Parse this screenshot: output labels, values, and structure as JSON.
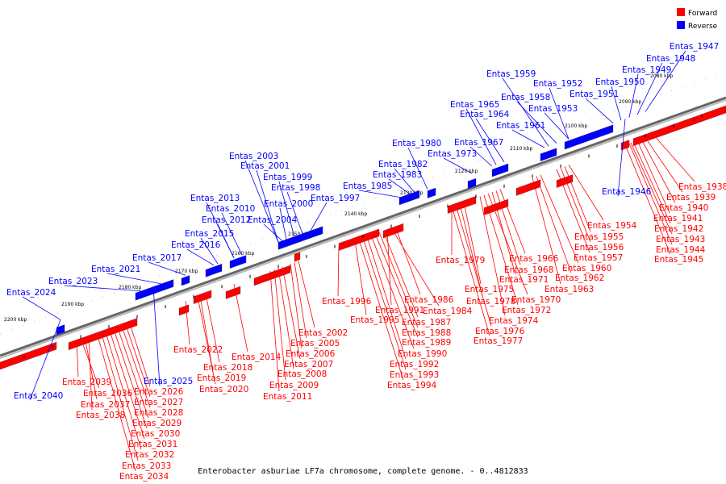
{
  "legend": [
    {
      "label": "Forward",
      "color": "#ff0000"
    },
    {
      "label": "Reverse",
      "color": "#0000ff"
    }
  ],
  "caption": "Enterobacter asburiae LF7a chromosome, complete genome. - 0..4812833",
  "colors": {
    "forward": "#ff0000",
    "reverse": "#0000ff",
    "backbone": "#808080",
    "tick": "#000000"
  },
  "scale_labels": [
    "2080 kbp",
    "2090 kbp",
    "2100 kbp",
    "2110 kbp",
    "2120 kbp",
    "2130 kbp",
    "2140 kbp",
    "2150 kbp",
    "2160 kbp",
    "2170 kbp",
    "2180 kbp",
    "2190 kbp",
    "2200 kbp"
  ],
  "forward_genes": [
    "Entas_1938",
    "Entas_1939",
    "Entas_1940",
    "Entas_1941",
    "Entas_1942",
    "Entas_1943",
    "Entas_1944",
    "Entas_1945",
    "Entas_1954",
    "Entas_1955",
    "Entas_1956",
    "Entas_1957",
    "Entas_1960",
    "Entas_1962",
    "Entas_1963",
    "Entas_1966",
    "Entas_1968",
    "Entas_1971",
    "Entas_1970",
    "Entas_1972",
    "Entas_1974",
    "Entas_1979",
    "Entas_1975",
    "Entas_1978",
    "Entas_1976",
    "Entas_1977",
    "Entas_1986",
    "Entas_1984",
    "Entas_1991",
    "Entas_1987",
    "Entas_1988",
    "Entas_1989",
    "Entas_1990",
    "Entas_1992",
    "Entas_1993",
    "Entas_1994",
    "Entas_1996",
    "Entas_1995",
    "Entas_2002",
    "Entas_2005",
    "Entas_2006",
    "Entas_2007",
    "Entas_2008",
    "Entas_2009",
    "Entas_2011",
    "Entas_2014",
    "Entas_2018",
    "Entas_2019",
    "Entas_2020",
    "Entas_2022",
    "Entas_2026",
    "Entas_2027",
    "Entas_2028",
    "Entas_2029",
    "Entas_2030",
    "Entas_2031",
    "Entas_2032",
    "Entas_2033",
    "Entas_2034",
    "Entas_2039",
    "Entas_2036",
    "Entas_2037",
    "Entas_2038"
  ],
  "reverse_genes": [
    "Entas_1947",
    "Entas_1948",
    "Entas_1949",
    "Entas_1950",
    "Entas_1951",
    "Entas_1952",
    "Entas_1953",
    "Entas_1958",
    "Entas_1959",
    "Entas_1961",
    "Entas_1964",
    "Entas_1965",
    "Entas_1967",
    "Entas_1973",
    "Entas_1980",
    "Entas_1982",
    "Entas_1983",
    "Entas_1985",
    "Entas_1997",
    "Entas_1998",
    "Entas_1999",
    "Entas_2000",
    "Entas_2001",
    "Entas_2003",
    "Entas_2004",
    "Entas_2010",
    "Entas_2012",
    "Entas_2013",
    "Entas_2015",
    "Entas_2016",
    "Entas_2017",
    "Entas_2021",
    "Entas_2023",
    "Entas_2024",
    "Entas_1946",
    "Entas_2025",
    "Entas_2040"
  ]
}
